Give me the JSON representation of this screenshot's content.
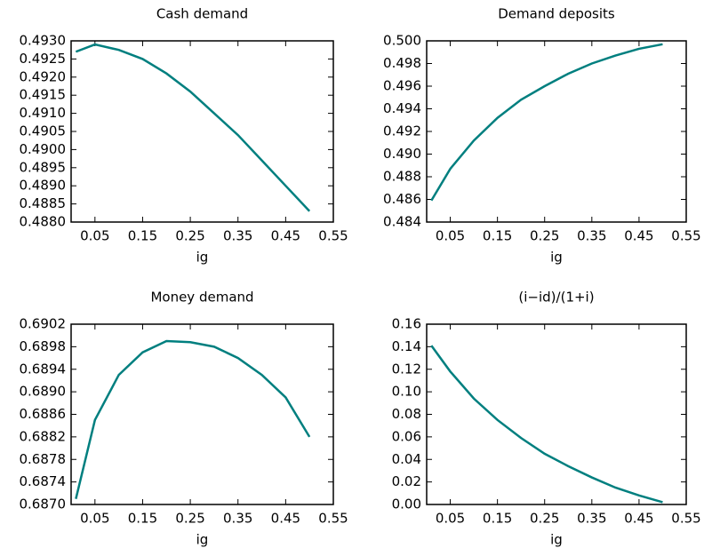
{
  "chart_data": [
    {
      "type": "line",
      "title": "Cash demand",
      "x_label": "ig",
      "x": [
        0.01,
        0.05,
        0.1,
        0.15,
        0.2,
        0.25,
        0.3,
        0.35,
        0.4,
        0.45,
        0.5
      ],
      "series": [
        {
          "name": "Cash demand",
          "color": "#007f7f",
          "values": [
            0.4927,
            0.4929,
            0.49275,
            0.4925,
            0.4921,
            0.4916,
            0.491,
            0.4904,
            0.4897,
            0.489,
            0.4883
          ]
        }
      ],
      "xlim": [
        0,
        0.55
      ],
      "xticks": [
        0.05,
        0.15,
        0.25,
        0.35,
        0.45,
        0.55
      ],
      "ylim": [
        0.488,
        0.493
      ],
      "yticks": [
        {
          "value": 0.488,
          "label": "0.4880"
        },
        {
          "value": 0.4885,
          "label": "0.4885"
        },
        {
          "value": 0.489,
          "label": "0.4890"
        },
        {
          "value": 0.4895,
          "label": "0.4895"
        },
        {
          "value": 0.49,
          "label": "0.4900"
        },
        {
          "value": 0.4905,
          "label": "0.4905"
        },
        {
          "value": 0.491,
          "label": "0.4910"
        },
        {
          "value": 0.4915,
          "label": "0.4915"
        },
        {
          "value": 0.492,
          "label": "0.4920"
        },
        {
          "value": 0.4925,
          "label": "0.4925"
        },
        {
          "value": 0.493,
          "label": "0.4930"
        }
      ]
    },
    {
      "type": "line",
      "title": "Demand deposits",
      "x_label": "ig",
      "x": [
        0.01,
        0.05,
        0.1,
        0.15,
        0.2,
        0.25,
        0.3,
        0.35,
        0.4,
        0.45,
        0.5
      ],
      "series": [
        {
          "name": "Demand deposits",
          "color": "#007f7f",
          "values": [
            0.4859,
            0.4887,
            0.4912,
            0.4932,
            0.4948,
            0.496,
            0.4971,
            0.498,
            0.4987,
            0.4993,
            0.4997
          ]
        }
      ],
      "xlim": [
        0,
        0.55
      ],
      "xticks": [
        0.05,
        0.15,
        0.25,
        0.35,
        0.45,
        0.55
      ],
      "ylim": [
        0.484,
        0.5
      ],
      "yticks": [
        {
          "value": 0.484,
          "label": "0.484"
        },
        {
          "value": 0.486,
          "label": "0.486"
        },
        {
          "value": 0.488,
          "label": "0.488"
        },
        {
          "value": 0.49,
          "label": "0.490"
        },
        {
          "value": 0.492,
          "label": "0.492"
        },
        {
          "value": 0.494,
          "label": "0.494"
        },
        {
          "value": 0.496,
          "label": "0.496"
        },
        {
          "value": 0.498,
          "label": "0.498"
        },
        {
          "value": 0.5,
          "label": "0.500"
        }
      ]
    },
    {
      "type": "line",
      "title": "Money demand",
      "x_label": "ig",
      "x": [
        0.01,
        0.05,
        0.1,
        0.15,
        0.2,
        0.25,
        0.3,
        0.35,
        0.4,
        0.45,
        0.5
      ],
      "series": [
        {
          "name": "Money demand",
          "color": "#007f7f",
          "values": [
            0.6871,
            0.6885,
            0.6893,
            0.6897,
            0.6899,
            0.68988,
            0.6898,
            0.6896,
            0.6893,
            0.6889,
            0.6882
          ]
        }
      ],
      "xlim": [
        0,
        0.55
      ],
      "xticks": [
        0.05,
        0.15,
        0.25,
        0.35,
        0.45,
        0.55
      ],
      "ylim": [
        0.687,
        0.6902
      ],
      "yticks": [
        {
          "value": 0.687,
          "label": "0.6870"
        },
        {
          "value": 0.6874,
          "label": "0.6874"
        },
        {
          "value": 0.6878,
          "label": "0.6878"
        },
        {
          "value": 0.6882,
          "label": "0.6882"
        },
        {
          "value": 0.6886,
          "label": "0.6886"
        },
        {
          "value": 0.689,
          "label": "0.6890"
        },
        {
          "value": 0.6894,
          "label": "0.6894"
        },
        {
          "value": 0.6898,
          "label": "0.6898"
        },
        {
          "value": 0.6902,
          "label": "0.6902"
        }
      ]
    },
    {
      "type": "line",
      "title": "(i−id)/(1+i)",
      "x_label": "ig",
      "x": [
        0.01,
        0.05,
        0.1,
        0.15,
        0.2,
        0.25,
        0.3,
        0.35,
        0.4,
        0.45,
        0.5
      ],
      "series": [
        {
          "name": "(i−id)/(1+i)",
          "color": "#007f7f",
          "values": [
            0.141,
            0.118,
            0.094,
            0.075,
            0.059,
            0.045,
            0.034,
            0.024,
            0.015,
            0.008,
            0.002
          ]
        }
      ],
      "xlim": [
        0,
        0.55
      ],
      "xticks": [
        0.05,
        0.15,
        0.25,
        0.35,
        0.45,
        0.55
      ],
      "ylim": [
        0,
        0.16
      ],
      "yticks": [
        {
          "value": 0,
          "label": "0.00"
        },
        {
          "value": 0.02,
          "label": "0.02"
        },
        {
          "value": 0.04,
          "label": "0.04"
        },
        {
          "value": 0.06,
          "label": "0.06"
        },
        {
          "value": 0.08,
          "label": "0.08"
        },
        {
          "value": 0.1,
          "label": "0.10"
        },
        {
          "value": 0.12,
          "label": "0.12"
        },
        {
          "value": 0.14,
          "label": "0.14"
        },
        {
          "value": 0.16,
          "label": "0.16"
        }
      ]
    }
  ]
}
